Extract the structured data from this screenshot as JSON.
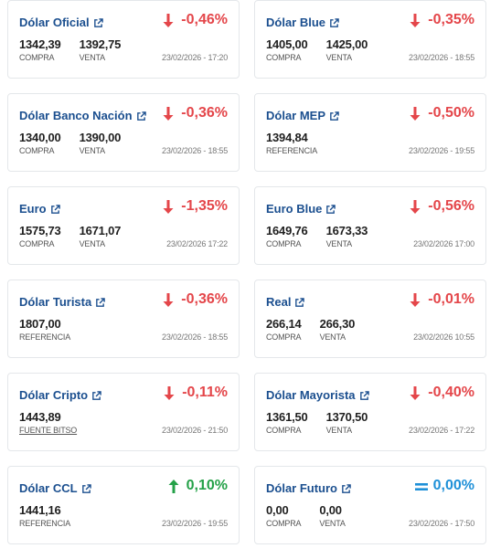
{
  "cards": [
    {
      "title": "Dólar Oficial",
      "variation": "-0,46%",
      "dir": "down",
      "v1": "1342,39",
      "l1": "COMPRA",
      "v2": "1392,75",
      "l2": "VENTA",
      "ts": "23/02/2026 - 17:20"
    },
    {
      "title": "Dólar Blue",
      "variation": "-0,35%",
      "dir": "down",
      "v1": "1405,00",
      "l1": "COMPRA",
      "v2": "1425,00",
      "l2": "VENTA",
      "ts": "23/02/2026 - 18:55"
    },
    {
      "title": "Dólar Banco Nación",
      "variation": "-0,36%",
      "dir": "down",
      "v1": "1340,00",
      "l1": "COMPRA",
      "v2": "1390,00",
      "l2": "VENTA",
      "ts": "23/02/2026 - 18:55"
    },
    {
      "title": "Dólar MEP",
      "variation": "-0,50%",
      "dir": "down",
      "v1": "1394,84",
      "l1": "REFERENCIA",
      "v2": "",
      "l2": "",
      "ts": "23/02/2026 - 19:55"
    },
    {
      "title": "Euro",
      "variation": "-1,35%",
      "dir": "down",
      "v1": "1575,73",
      "l1": "COMPRA",
      "v2": "1671,07",
      "l2": "VENTA",
      "ts": "23/02/2026 17:22"
    },
    {
      "title": "Euro Blue",
      "variation": "-0,56%",
      "dir": "down",
      "v1": "1649,76",
      "l1": "COMPRA",
      "v2": "1673,33",
      "l2": "VENTA",
      "ts": "23/02/2026 17:00"
    },
    {
      "title": "Dólar Turista",
      "variation": "-0,36%",
      "dir": "down",
      "v1": "1807,00",
      "l1": "REFERENCIA",
      "v2": "",
      "l2": "",
      "ts": "23/02/2026 - 18:55"
    },
    {
      "title": "Real",
      "variation": "-0,01%",
      "dir": "down",
      "v1": "266,14",
      "l1": "COMPRA",
      "v2": "266,30",
      "l2": "VENTA",
      "ts": "23/02/2026 10:55"
    },
    {
      "title": "Dólar Cripto",
      "variation": "-0,11%",
      "dir": "down",
      "v1": "1443,89",
      "l1": "FUENTE BITSO",
      "v2": "",
      "l2": "",
      "ts": "23/02/2026 - 21:50"
    },
    {
      "title": "Dólar Mayorista",
      "variation": "-0,40%",
      "dir": "down",
      "v1": "1361,50",
      "l1": "COMPRA",
      "v2": "1370,50",
      "l2": "VENTA",
      "ts": "23/02/2026 - 17:22"
    },
    {
      "title": "Dólar CCL",
      "variation": "0,10%",
      "dir": "up",
      "v1": "1441,16",
      "l1": "REFERENCIA",
      "v2": "",
      "l2": "",
      "ts": "23/02/2026 - 19:55"
    },
    {
      "title": "Dólar Futuro",
      "variation": "0,00%",
      "dir": "eq",
      "v1": "0,00",
      "l1": "COMPRA",
      "v2": "0,00",
      "l2": "VENTA",
      "ts": "23/02/2026 - 17:50"
    }
  ],
  "icons": {
    "external": "external-link-icon",
    "down": "arrow-down-icon",
    "up": "arrow-up-icon",
    "eq": "equal-icon"
  },
  "colors": {
    "title": "#1b4f8f",
    "down": "#e4464a",
    "up": "#24a148",
    "eq": "#1e90d8",
    "border": "#e4e7ea"
  }
}
